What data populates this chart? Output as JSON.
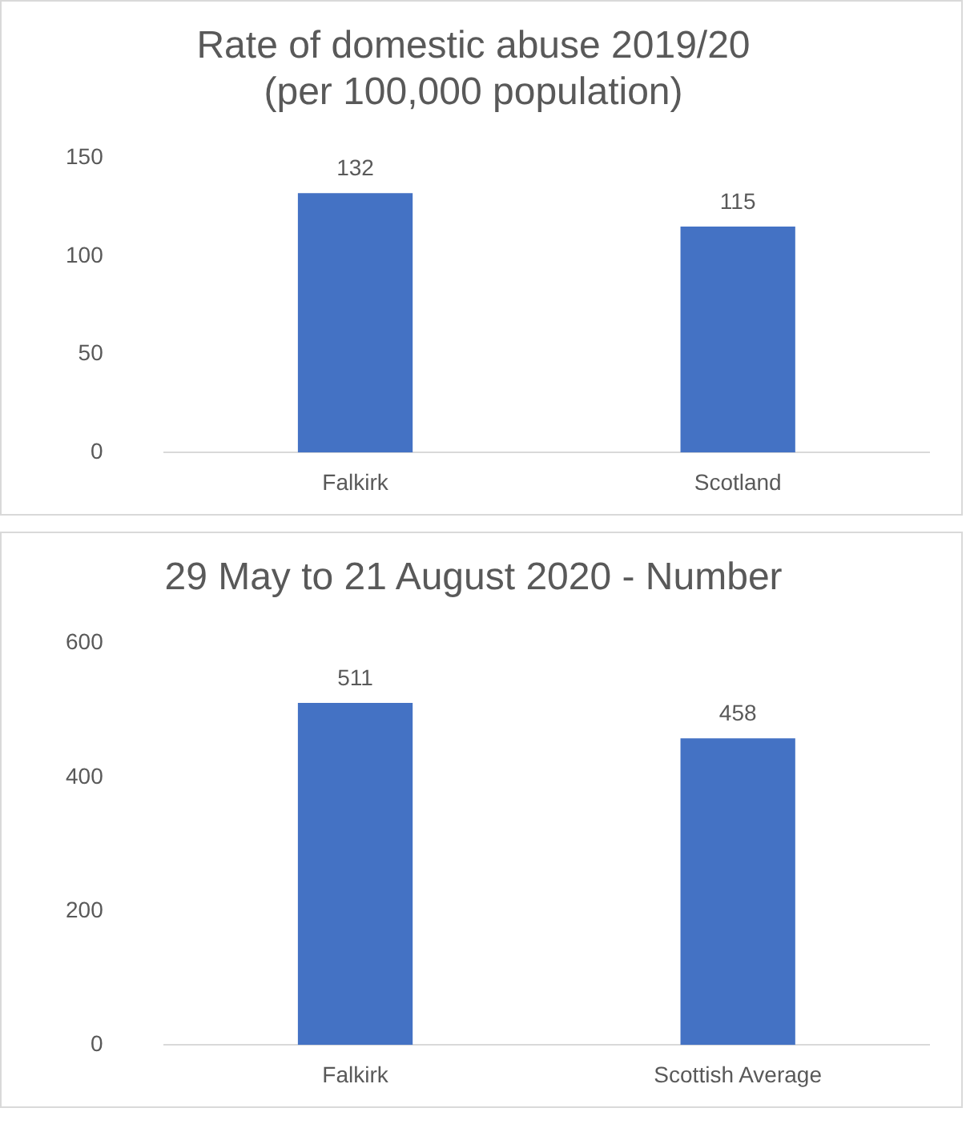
{
  "chart_data": [
    {
      "type": "bar",
      "title": "Rate of domestic abuse 2019/20\n(per 100,000 population)",
      "categories": [
        "Falkirk",
        "Scotland"
      ],
      "values": [
        132,
        115
      ],
      "color": "#4472c4",
      "ylim": [
        0,
        150
      ],
      "yticks": [
        0,
        50,
        100,
        150
      ],
      "grid": false,
      "legend": false,
      "data_labels": true
    },
    {
      "type": "bar",
      "title": "29 May to 21 August 2020 - Number",
      "categories": [
        "Falkirk",
        "Scottish Average"
      ],
      "values": [
        511,
        458
      ],
      "color": "#4472c4",
      "ylim": [
        0,
        600
      ],
      "yticks": [
        0,
        200,
        400,
        600
      ],
      "grid": false,
      "legend": false,
      "data_labels": true
    }
  ]
}
